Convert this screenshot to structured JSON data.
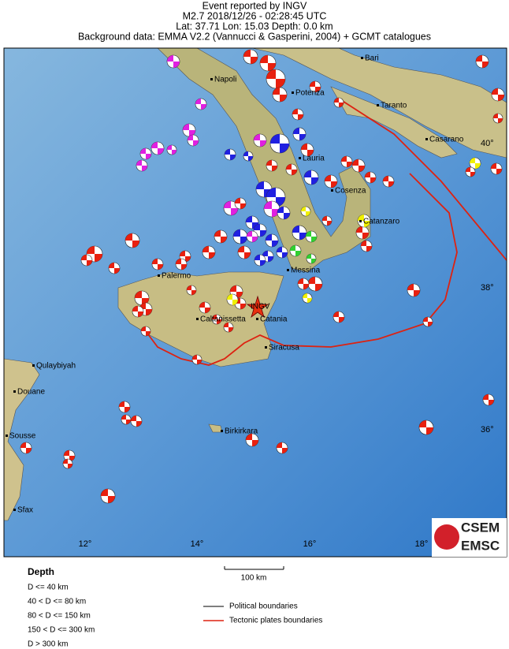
{
  "header": {
    "lines": [
      "Event reported by INGV",
      "M2.7  2018/12/26 - 02:28:45 UTC",
      "Lat: 37.71    Lon:  15.03     Depth:   0.0 km",
      "Background data: EMMA V2.2 (Vannucci & Gasperini, 2004) + GCMT catalogues"
    ]
  },
  "map": {
    "cities": [
      "Bari",
      "Napoli",
      "Potenza",
      "Taranto",
      "Lauria",
      "Casarano",
      "Cosenza",
      "Catanzaro",
      "Palermo",
      "Messina",
      "Caltanissetta",
      "Catania",
      "Siracusa",
      "Qulaybiyah",
      "Douane",
      "Sousse",
      "Birkirkara",
      "Sfax"
    ],
    "station": "INGV",
    "lat_labels": [
      "40°",
      "38°",
      "36°"
    ],
    "lon_labels": [
      "12°",
      "14°",
      "16°",
      "18°"
    ]
  },
  "legend": {
    "depth_title": "Depth",
    "depth_classes": [
      "D <= 40 km",
      "40 < D <= 80 km",
      "80 < D <= 150 km",
      "150 < D <= 300 km",
      "D > 300 km"
    ],
    "scale": "100 km",
    "lines": [
      "Political boundaries",
      "Tectonic plates boundaries"
    ]
  },
  "logo": {
    "top": "CSEM",
    "bottom": "EMSC"
  }
}
